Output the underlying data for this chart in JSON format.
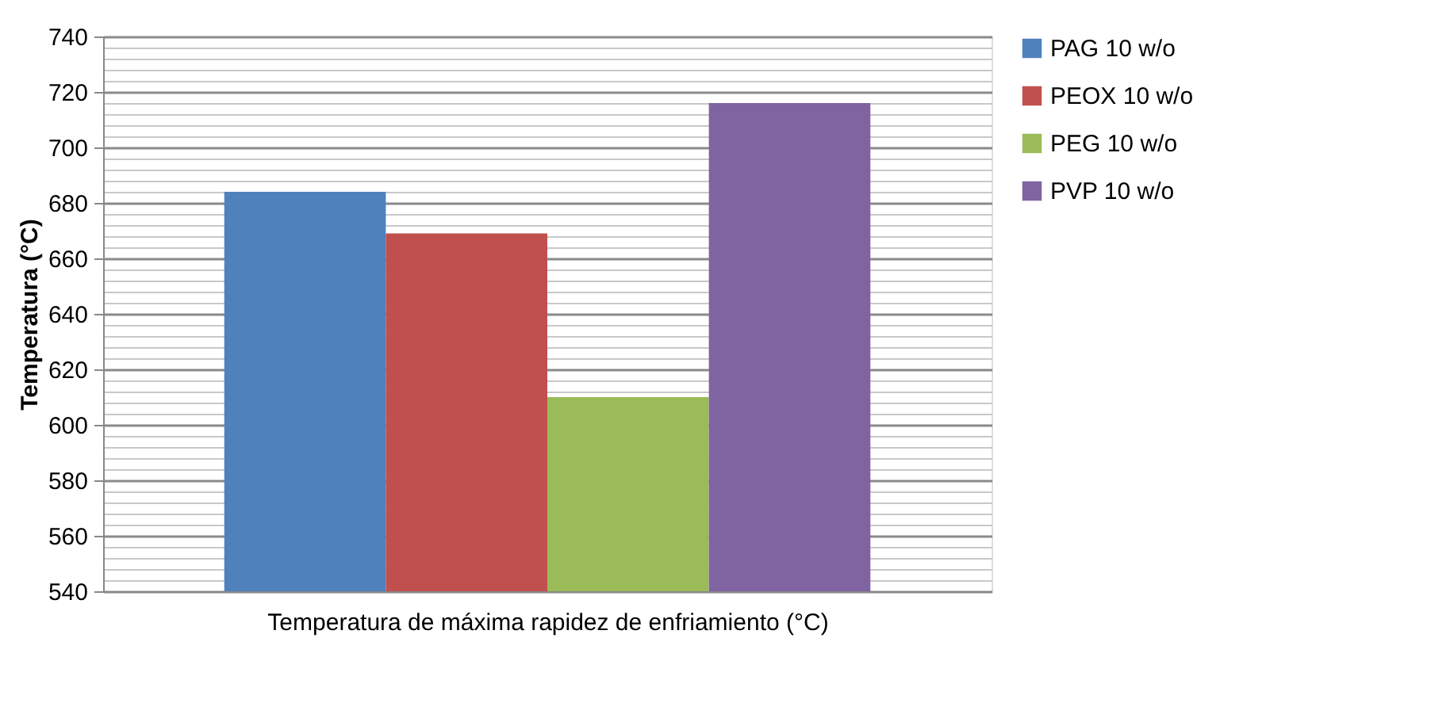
{
  "chart_data": {
    "type": "bar",
    "xlabel": "Temperatura de máxima rapidez de enfriamiento (°C)",
    "ylabel": "Temperatura (°C)",
    "categories": [
      null
    ],
    "series": [
      {
        "name": "PAG 10 w/o",
        "color": "#4f81bd",
        "values": [
          684
        ]
      },
      {
        "name": "PEOX 10 w/o",
        "color": "#c0504d",
        "values": [
          669
        ]
      },
      {
        "name": "PEG 10 w/o",
        "color": "#9bbb59",
        "values": [
          610
        ]
      },
      {
        "name": "PVP 10 w/o",
        "color": "#8064a2",
        "values": [
          716
        ]
      }
    ],
    "ylim": [
      540,
      740
    ],
    "yticks": [
      540,
      {
        "value": 544,
        "label": null
      },
      {
        "value": 548,
        "label": null
      },
      {
        "value": 552,
        "label": null
      },
      {
        "value": 556,
        "label": null
      },
      560,
      {
        "value": 564,
        "label": null
      },
      {
        "value": 568,
        "label": null
      },
      {
        "value": 572,
        "label": null
      },
      {
        "value": 576,
        "label": null
      },
      580,
      {
        "value": 584,
        "label": null
      },
      {
        "value": 588,
        "label": null
      },
      {
        "value": 592,
        "label": null
      },
      {
        "value": 596,
        "label": null
      },
      600,
      {
        "value": 604,
        "label": null
      },
      {
        "value": 608,
        "label": null
      },
      {
        "value": 612,
        "label": null
      },
      {
        "value": 616,
        "label": null
      },
      620,
      {
        "value": 624,
        "label": null
      },
      {
        "value": 628,
        "label": null
      },
      {
        "value": 632,
        "label": null
      },
      {
        "value": 636,
        "label": null
      },
      640,
      {
        "value": 644,
        "label": null
      },
      {
        "value": 648,
        "label": null
      },
      {
        "value": 652,
        "label": null
      },
      {
        "value": 656,
        "label": null
      },
      660,
      {
        "value": 664,
        "label": null
      },
      {
        "value": 668,
        "label": null
      },
      {
        "value": 672,
        "label": null
      },
      {
        "value": 676,
        "label": null
      },
      680,
      {
        "value": 684,
        "label": null
      },
      {
        "value": 688,
        "label": null
      },
      {
        "value": 692,
        "label": null
      },
      {
        "value": 696,
        "label": null
      },
      700,
      {
        "value": 704,
        "label": null
      },
      {
        "value": 708,
        "label": null
      },
      {
        "value": 712,
        "label": null
      },
      {
        "value": 716,
        "label": null
      },
      720,
      {
        "value": 724,
        "label": null
      },
      {
        "value": 728,
        "label": null
      },
      {
        "value": 732,
        "label": null
      },
      {
        "value": 736,
        "label": null
      },
      740
    ],
    "grid": "y",
    "legend": "right"
  }
}
